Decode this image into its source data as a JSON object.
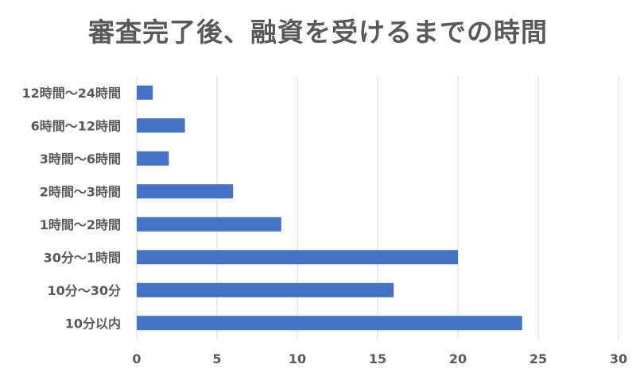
{
  "chart_data": {
    "type": "bar",
    "orientation": "horizontal",
    "title": "審査完了後、融資を受けるまでの時間",
    "categories": [
      "12時間〜24時間",
      "6時間〜12時間",
      "3時間〜6時間",
      "2時間〜3時間",
      "1時間〜2時間",
      "30分〜1時間",
      "10分〜30分",
      "10分以内"
    ],
    "values": [
      1,
      3,
      2,
      6,
      9,
      20,
      16,
      24
    ],
    "xlim": [
      0,
      30
    ],
    "xticks": [
      0,
      5,
      10,
      15,
      20,
      25,
      30
    ],
    "grid": true,
    "bar_color": "#4472C4"
  }
}
